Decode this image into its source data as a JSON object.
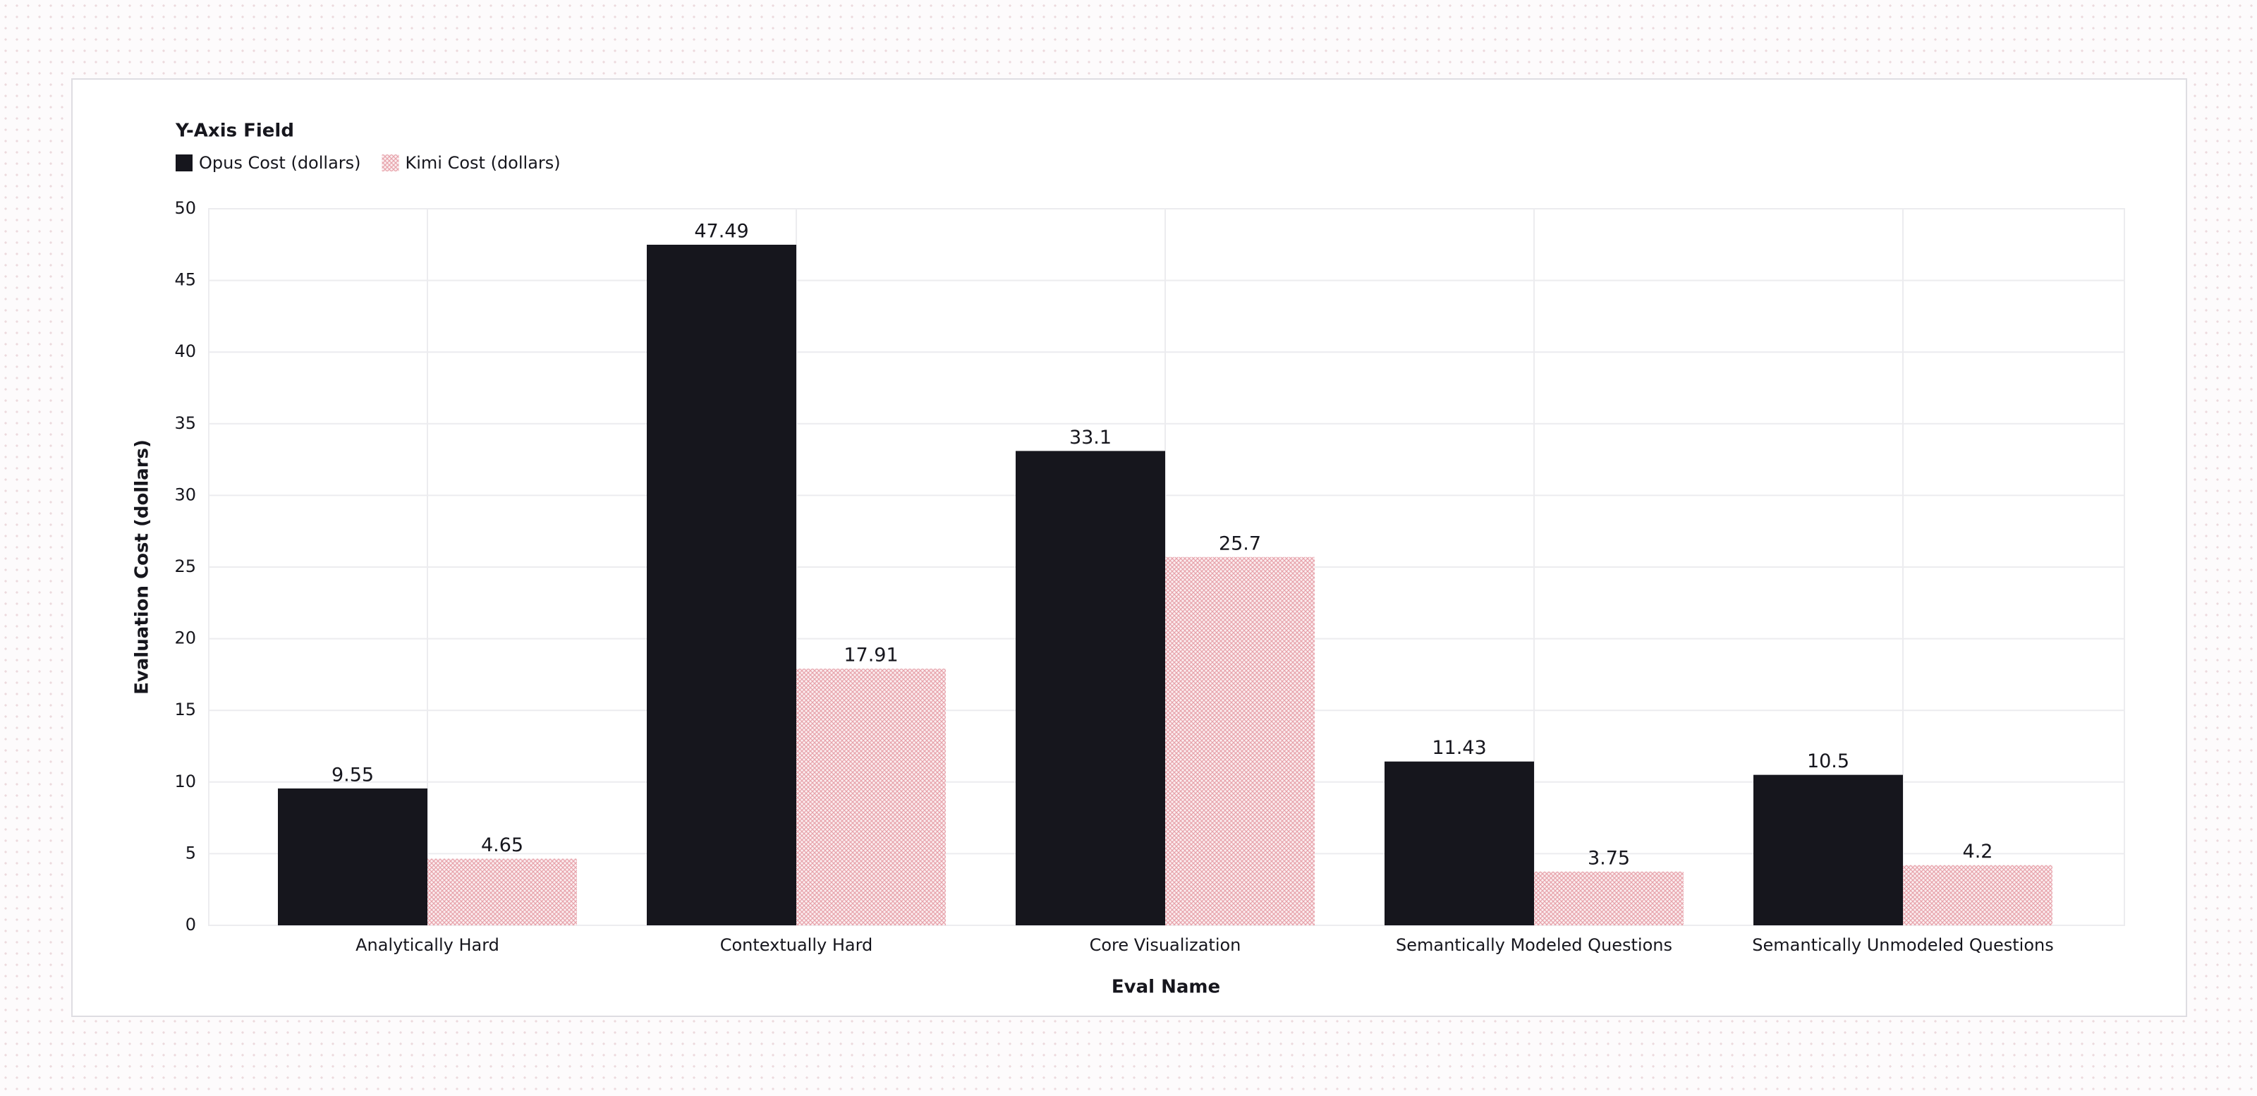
{
  "chart_data": {
    "type": "bar",
    "legend_title": "Y-Axis Field",
    "x_label": "Eval Name",
    "y_label": "Evaluation Cost (dollars)",
    "categories": [
      "Analytically Hard",
      "Contextually Hard",
      "Core Visualization",
      "Semantically Modeled Questions",
      "Semantically Unmodeled Questions"
    ],
    "series": [
      {
        "name": "Opus Cost (dollars)",
        "color": "#16161d",
        "pattern": "solid",
        "values": [
          9.55,
          47.49,
          33.1,
          11.43,
          10.5
        ]
      },
      {
        "name": "Kimi Cost (dollars)",
        "color": "#e7a3ab",
        "pattern": "hatch",
        "values": [
          4.65,
          17.91,
          25.7,
          3.75,
          4.2
        ]
      }
    ],
    "ylim": [
      0,
      50
    ],
    "yticks": [
      0,
      5,
      10,
      15,
      20,
      25,
      30,
      35,
      40,
      45,
      50
    ],
    "grid": true
  }
}
